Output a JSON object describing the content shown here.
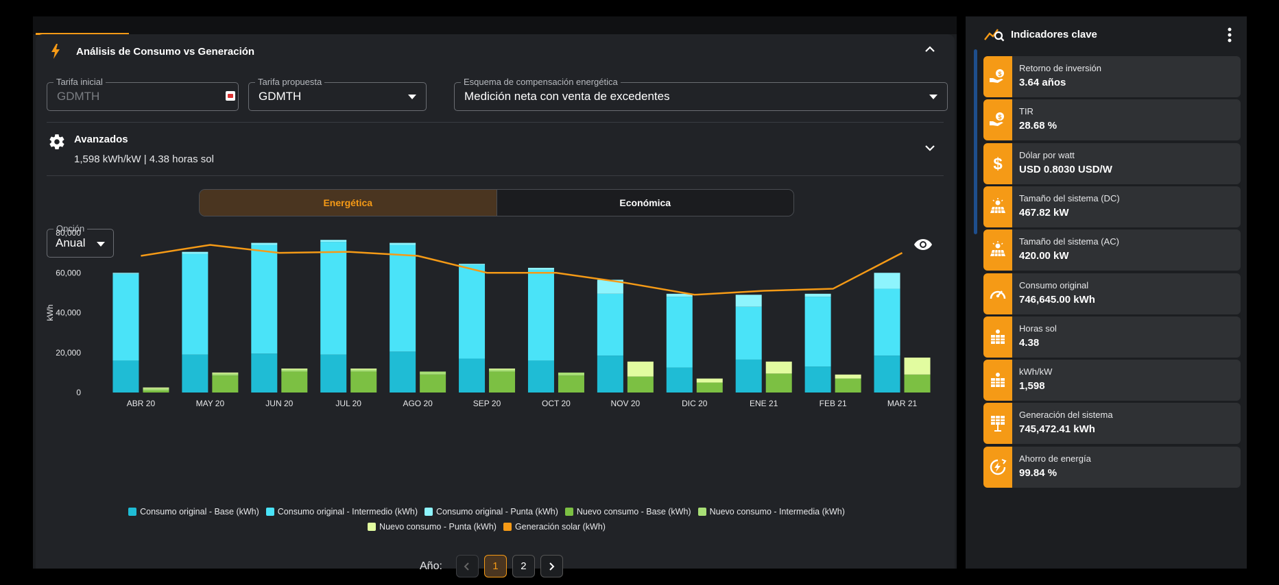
{
  "card": {
    "title": "Análisis de Consumo vs Generación"
  },
  "fields": {
    "tarifa_inicial": {
      "label": "Tarifa inicial",
      "value": "GDMTH"
    },
    "tarifa_propuesta": {
      "label": "Tarifa propuesta",
      "value": "GDMTH"
    },
    "esquema": {
      "label": "Esquema de compensación energética",
      "value": "Medición neta con venta de excedentes"
    }
  },
  "advanced": {
    "title": "Avanzados",
    "subtitle": "1,598 kWh/kW | 4.38 horas sol"
  },
  "toggle": {
    "energetica": "Energética",
    "economica": "Económica"
  },
  "option": {
    "label": "Opción",
    "value": "Anual"
  },
  "chart_data": {
    "type": "bar",
    "stacked": true,
    "ylabel": "kWh",
    "ylim": [
      0,
      80000
    ],
    "yticks": [
      "0",
      "20,000",
      "40,000",
      "60,000",
      "80,000"
    ],
    "ytick_values": [
      0,
      20000,
      40000,
      60000,
      80000
    ],
    "categories": [
      "ABR 20",
      "MAY 20",
      "JUN 20",
      "JUL 20",
      "AGO 20",
      "SEP 20",
      "OCT 20",
      "NOV 20",
      "DIC 20",
      "ENE 21",
      "FEB 21",
      "MAR 21"
    ],
    "stack_original": [
      {
        "name": "Consumo original - Base (kWh)",
        "color": "#1fbcd5",
        "values": [
          16000,
          19000,
          19500,
          19000,
          20500,
          17000,
          16000,
          18500,
          12500,
          16500,
          13000,
          18500
        ]
      },
      {
        "name": "Consumo original - Intermedio (kWh)",
        "color": "#4ae3f8",
        "values": [
          43500,
          50500,
          54500,
          56500,
          53500,
          47000,
          45500,
          31000,
          35500,
          26500,
          35000,
          33500
        ]
      },
      {
        "name": "Consumo original - Punta (kWh)",
        "color": "#8ef4fd",
        "values": [
          500,
          1000,
          1000,
          1000,
          1000,
          500,
          1000,
          7000,
          1500,
          6000,
          1500,
          8000
        ]
      }
    ],
    "stack_nuevo": [
      {
        "name": "Nuevo consumo - Base (kWh)",
        "color": "#7cc043",
        "values": [
          1000,
          8500,
          10500,
          10500,
          9000,
          10500,
          8500,
          8000,
          5000,
          9500,
          7000,
          9000
        ]
      },
      {
        "name": "Nuevo consumo - Intermedia (kWh)",
        "color": "#a8df76",
        "values": [
          1000,
          1000,
          1000,
          1000,
          1500,
          1000,
          1500,
          0,
          0,
          0,
          0,
          0
        ]
      },
      {
        "name": "Nuevo consumo - Punta (kWh)",
        "color": "#e2fca0",
        "values": [
          500,
          500,
          500,
          500,
          0,
          500,
          0,
          7500,
          2000,
          6000,
          2000,
          8500
        ]
      }
    ],
    "line": {
      "name": "Generación solar (kWh)",
      "color": "#f59a16",
      "values": [
        68500,
        74000,
        70000,
        70500,
        68500,
        60000,
        60000,
        55000,
        49000,
        51000,
        52000,
        70000
      ]
    }
  },
  "pager": {
    "label": "Año:",
    "pages": [
      "1",
      "2"
    ],
    "active": "1"
  },
  "side": {
    "title": "Indicadores clave",
    "kpis": [
      {
        "label": "Retorno de inversión",
        "value": "3.64 años",
        "icon": "hand-coin-icon"
      },
      {
        "label": "TIR",
        "value": "28.68 %",
        "icon": "hand-coin-icon"
      },
      {
        "label": "Dólar por watt",
        "value": "USD 0.8030 USD/W",
        "icon": "dollar-icon"
      },
      {
        "label": "Tamaño del sistema (DC)",
        "value": "467.82 kW",
        "icon": "solar-panel-icon"
      },
      {
        "label": "Tamaño del sistema (AC)",
        "value": "420.00 kW",
        "icon": "solar-panel-icon"
      },
      {
        "label": "Consumo original",
        "value": "746,645.00 kWh",
        "icon": "gauge-icon"
      },
      {
        "label": "Horas sol",
        "value": "4.38",
        "icon": "sun-panel-icon"
      },
      {
        "label": "kWh/kW",
        "value": "1,598",
        "icon": "sun-panel-icon"
      },
      {
        "label": "Generación del sistema",
        "value": "745,472.41 kWh",
        "icon": "panel-generation-icon"
      },
      {
        "label": "Ahorro de energía",
        "value": "99.84 %",
        "icon": "energy-save-icon"
      }
    ]
  },
  "colors": {
    "accent": "#f59a16",
    "panel": "#1c1e21",
    "card": "#212327"
  }
}
